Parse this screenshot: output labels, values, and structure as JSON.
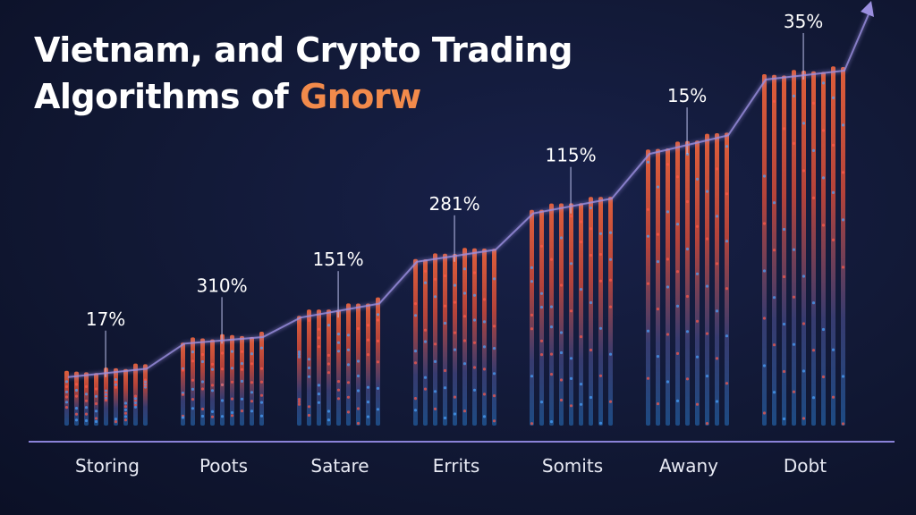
{
  "title": {
    "line1": "Vietnam, and Crypto Trading",
    "line2_prefix": "Algorithms of ",
    "line2_accent": "Gnorw"
  },
  "colors": {
    "background": "#111834",
    "bar_top": "#f0643a",
    "bar_bottom": "#1e4f8a",
    "trend_line": "#9b8fe0",
    "axis": "#8a82d8",
    "title_accent": "#f28a4b"
  },
  "chart_data": {
    "type": "bar",
    "title": "Vietnam, and Crypto Trading Algorithms of Gnorw",
    "xlabel": "",
    "ylabel": "",
    "categories": [
      "Storing",
      "Poots",
      "Satare",
      "Errits",
      "Somits",
      "Awany",
      "Dobt"
    ],
    "value_labels": [
      "17%",
      "310%",
      "151%",
      "281%",
      "115%",
      "15%",
      "35%"
    ],
    "relative_heights": [
      0.14,
      0.23,
      0.3,
      0.45,
      0.58,
      0.74,
      0.94
    ],
    "trend_line": true,
    "trend_arrow": true,
    "grid": false,
    "legend": "none"
  }
}
